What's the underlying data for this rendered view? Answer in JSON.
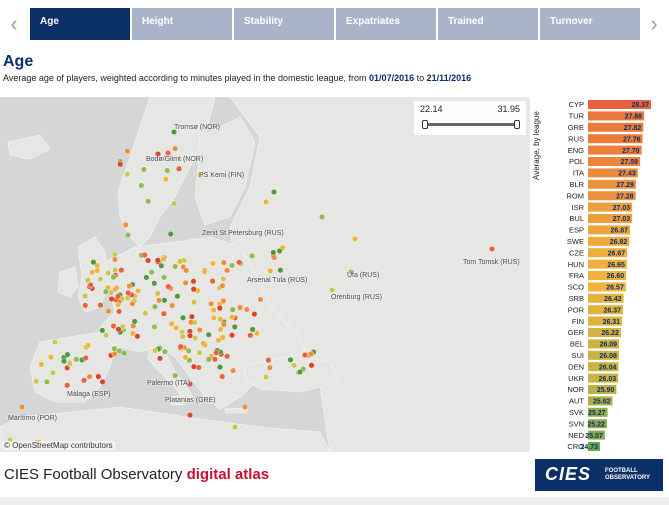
{
  "tabs": [
    {
      "label": "Age",
      "active": true
    },
    {
      "label": "Height",
      "active": false
    },
    {
      "label": "Stability",
      "active": false
    },
    {
      "label": "Expatriates",
      "active": false
    },
    {
      "label": "Trained",
      "active": false
    },
    {
      "label": "Turnover",
      "active": false
    }
  ],
  "header": {
    "title": "Age",
    "subtitle_prefix": "Average age of players, weighted according to minutes played in the domestic league, from ",
    "date_from": "01/07/2016",
    "date_connector": " to ",
    "date_to": "21/11/2016"
  },
  "map": {
    "attribution": "© OpenStreetMap contributors",
    "slider": {
      "min": "22.14",
      "max": "31.95"
    },
    "labels": [
      {
        "id": "tromso",
        "text": "Tromsø (NOR)"
      },
      {
        "id": "bodo",
        "text": "Bodø/Glimt (NOR)"
      },
      {
        "id": "kemi",
        "text": "PS Kemi (FIN)"
      },
      {
        "id": "zenit",
        "text": "Zenit St Petersburg (RUS)"
      },
      {
        "id": "tomsk",
        "text": "Tom Tomsk (RUS)"
      },
      {
        "id": "arsenal",
        "text": "Arsenal Tula (RUS)"
      },
      {
        "id": "ufa",
        "text": "Ufa (RUS)"
      },
      {
        "id": "orenburg",
        "text": "Orenburg (RUS)"
      },
      {
        "id": "palermo",
        "text": "Palermo (ITA)"
      },
      {
        "id": "malaga",
        "text": "Málaga (ESP)"
      },
      {
        "id": "platanias",
        "text": "Platanias (GRE)"
      },
      {
        "id": "maritimo",
        "text": "Marítimo (POR)"
      }
    ]
  },
  "chart_data": {
    "type": "bar",
    "ylabel": "Average, by league",
    "categories": [
      "CYP",
      "TUR",
      "GRE",
      "RUS",
      "ENG",
      "POL",
      "ITA",
      "BLR",
      "ROM",
      "ISR",
      "BUL",
      "ESP",
      "SWE",
      "CZE",
      "HUN",
      "FRA",
      "SCO",
      "SRB",
      "POR",
      "FIN",
      "GER",
      "BEL",
      "SUI",
      "DEN",
      "UKR",
      "NOR",
      "AUT",
      "SVK",
      "SVN",
      "NED",
      "CRO"
    ],
    "values": [
      28.37,
      27.88,
      27.82,
      27.76,
      27.7,
      27.59,
      27.43,
      27.29,
      27.28,
      27.03,
      27.03,
      26.87,
      26.82,
      26.67,
      26.65,
      26.6,
      26.57,
      26.42,
      26.37,
      26.31,
      26.22,
      26.09,
      26.08,
      26.04,
      26.03,
      25.9,
      25.62,
      25.27,
      25.22,
      25.07,
      24.73
    ],
    "value_labels": [
      "28.37",
      "27.88",
      "27.82",
      "27.76",
      "27.70",
      "27.59",
      "27.43",
      "27.29",
      "27.28",
      "27.03",
      "27.03",
      "26.87",
      "26.82",
      "26.67",
      "26.65",
      "26.60",
      "26.57",
      "26.42",
      "26.37",
      "26.31",
      "26.22",
      "26.09",
      "26.08",
      "26.04",
      "26.03",
      "25.90",
      "25.62",
      "25.27",
      "25.22",
      "25.07",
      "24.73"
    ],
    "color_range": [
      "#e8603c",
      "#f0b43c",
      "#6aa84f"
    ]
  },
  "footer": {
    "text": "CIES Football Observatory ",
    "accent": "digital atlas",
    "logo_main": "CIES",
    "logo_sub_1": "FOOTBALL",
    "logo_sub_2": "OBSERVATORY"
  },
  "colors": {
    "navy": "#0b2f67",
    "tab_inactive": "#aab4c8",
    "accent_red": "#c8102e"
  }
}
